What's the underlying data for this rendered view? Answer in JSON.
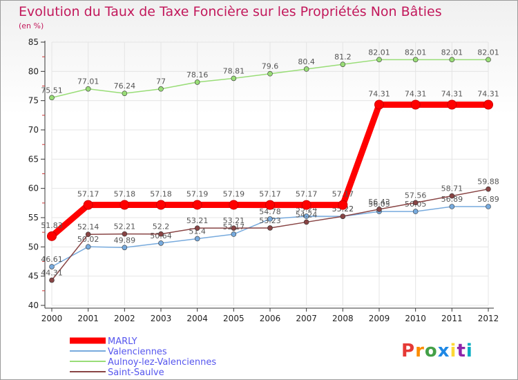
{
  "title": "Evolution du Taux de Taxe Foncière sur les Propriétés Non Bâties",
  "subtitle": "(en %)",
  "logo": {
    "text": "Proxiti",
    "colors": [
      "#e53935",
      "#fb8c00",
      "#43a047",
      "#1e88e5",
      "#fdd835",
      "#8e24aa",
      "#00acc1"
    ]
  },
  "chart_data": {
    "type": "line",
    "title": "Evolution du Taux de Taxe Foncière sur les Propriétés Non Bâties",
    "ylabel": "(en %)",
    "xlabel": "",
    "categories": [
      "2000",
      "2001",
      "2002",
      "2003",
      "2004",
      "2005",
      "2006",
      "2007",
      "2008",
      "2009",
      "2010",
      "2011",
      "2012"
    ],
    "ylim": [
      40,
      85
    ],
    "yticks": [
      40,
      45,
      50,
      55,
      60,
      65,
      70,
      75,
      80,
      85
    ],
    "yticks_text": [
      "40",
      "45",
      "50",
      "55",
      "60",
      "65",
      "70",
      "75",
      "80",
      "85"
    ],
    "grid": true,
    "legend_position": "bottom-left",
    "series": [
      {
        "name": "Aulnoy-lez-Valenciennes",
        "color": "#99dd77",
        "values": [
          75.51,
          77.01,
          76.24,
          77,
          78.16,
          78.81,
          79.6,
          80.4,
          81.2,
          82.01,
          82.01,
          82.01,
          82.01
        ],
        "labels": [
          "75.51",
          "77.01",
          "76.24",
          "77",
          "78.16",
          "78.81",
          "79.6",
          "80.4",
          "81.2",
          "82.01",
          "82.01",
          "82.01",
          "82.01"
        ]
      },
      {
        "name": "Valenciennes",
        "color": "#77aadd",
        "values": [
          46.61,
          50.02,
          49.89,
          50.64,
          51.4,
          52.17,
          54.78,
          55.24,
          55.22,
          56.05,
          56.05,
          56.89,
          56.89
        ],
        "labels": [
          "46.61",
          "50.02",
          "49.89",
          "50.64",
          "51.4",
          "52.17",
          "54.78",
          "55.24",
          "55.22",
          "56.05",
          "56.05",
          "56.89",
          "56.89"
        ]
      },
      {
        "name": "Saint-Saulve",
        "color": "#884444",
        "values": [
          44.31,
          52.14,
          52.21,
          52.2,
          53.21,
          53.21,
          53.23,
          54.24,
          55.22,
          56.43,
          57.56,
          58.71,
          59.88
        ],
        "labels": [
          "44.31",
          "52.14",
          "52.21",
          "52.2",
          "53.21",
          "53.21",
          "53.23",
          "54.24",
          "55.22",
          "56.43",
          "57.56",
          "58.71",
          "59.88"
        ]
      },
      {
        "name": "MARLY",
        "color": "#ff0000",
        "values": [
          51.83,
          57.17,
          57.18,
          57.18,
          57.19,
          57.19,
          57.17,
          57.17,
          57.17,
          74.31,
          74.31,
          74.31,
          74.31
        ],
        "labels": [
          "51.83",
          "57.17",
          "57.18",
          "57.18",
          "57.19",
          "57.19",
          "57.17",
          "57.17",
          "57.17",
          "74.31",
          "74.31",
          "74.31",
          "74.31"
        ]
      }
    ],
    "legend": [
      "MARLY",
      "Valenciennes",
      "Aulnoy-lez-Valenciennes",
      "Saint-Saulve"
    ]
  }
}
